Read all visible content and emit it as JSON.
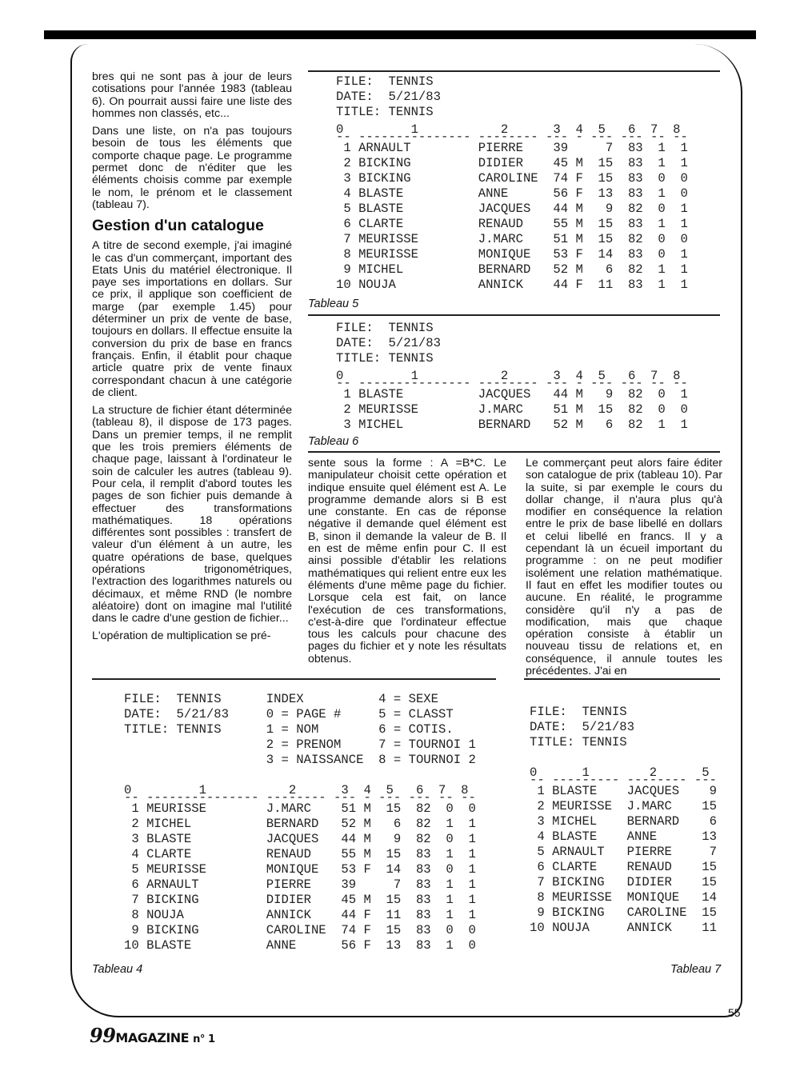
{
  "left_column": {
    "paragraphs_top": [
      "bres qui ne sont pas à jour de leurs cotisations pour l'année 1983 (tableau 6). On pourrait aussi faire une liste des hommes non classés, etc...",
      "Dans une liste, on n'a pas toujours besoin de tous les éléments que comporte chaque page. Le programme permet donc de n'éditer que les éléments choisis comme par exemple le nom, le prénom et le classement (tableau 7)."
    ],
    "heading": "Gestion d'un catalogue",
    "paragraphs_bottom": [
      "A titre de second exemple, j'ai imaginé le cas d'un commerçant, important des Etats Unis du matériel électronique. Il paye ses importations en dollars. Sur ce prix, il applique son coefficient de marge (par exemple 1.45) pour déterminer un prix de vente de base, toujours en dollars. Il effectue ensuite la conversion du prix de base en francs français. Enfin, il établit pour chaque article quatre prix de vente finaux correspondant chacun à une catégorie de client.",
      "La structure de fichier étant déterminée (tableau 8), il dispose de 173 pages. Dans un premier temps, il ne remplit que les trois premiers éléments de chaque page, laissant à l'ordinateur le soin de calculer les autres (tableau 9). Pour cela, il remplit d'abord toutes les pages de son fichier puis demande à effectuer des transformations mathématiques. 18 opérations différentes sont possibles : transfert de valeur d'un élément à un autre, les quatre opérations de base, quelques opérations trigonométriques, l'extraction des logarithmes naturels ou décimaux, et même RND (le nombre aléatoire) dont on imagine mal l'utilité dans le cadre d'une gestion de fichier...",
      "L'opération de multiplication se pré-"
    ]
  },
  "middle_column": "sente sous la forme : A =B*C. Le manipulateur choisit cette opération et indique ensuite quel élément est A. Le programme demande alors si B est une constante. En cas de réponse négative il demande quel élément est B, sinon il demande la valeur de B. Il en est de même enfin pour C. Il est ainsi possible d'établir les relations mathématiques qui relient entre eux les éléments d'une même page du fichier. Lorsque cela est fait, on lance l'exécution de ces transformations, c'est-à-dire que l'ordinateur effectue tous les calculs pour chacune des pages du fichier et y note les résultats obtenus.",
  "right_column": "Le commerçant peut alors faire éditer son catalogue de prix (tableau 10). Par la suite, si par exemple le cours du dollar change, il n'aura plus qu'à modifier en conséquence la relation entre le prix de base libellé en dollars et celui libellé en francs. Il y a cependant là un écueil important du programme : on ne peut modifier isolément une relation mathématique. Il faut en effet les modifier toutes ou aucune. En réalité, le programme considère qu'il n'y a pas de modification, mais que chaque opération consiste à établir un nouveau tissu de relations et, en conséquence, il annule toutes les précédentes. J'ai en",
  "file_header": {
    "file": "FILE:  TENNIS",
    "date": "DATE:  5/21/83",
    "title": "TITLE: TENNIS"
  },
  "tableau5": {
    "caption": "Tableau 5",
    "columns": [
      "0",
      "1",
      "2",
      "3",
      "4",
      "5",
      "6",
      "7",
      "8"
    ],
    "rows": [
      [
        "1",
        "ARNAULT",
        "PIERRE",
        "39",
        "",
        "7",
        "83",
        "1",
        "1"
      ],
      [
        "2",
        "BICKING",
        "DIDIER",
        "45",
        "M",
        "15",
        "83",
        "1",
        "1"
      ],
      [
        "3",
        "BICKING",
        "CAROLINE",
        "74",
        "F",
        "15",
        "83",
        "0",
        "0"
      ],
      [
        "4",
        "BLASTE",
        "ANNE",
        "56",
        "F",
        "13",
        "83",
        "1",
        "0"
      ],
      [
        "5",
        "BLASTE",
        "JACQUES",
        "44",
        "M",
        "9",
        "82",
        "0",
        "1"
      ],
      [
        "6",
        "CLARTE",
        "RENAUD",
        "55",
        "M",
        "15",
        "83",
        "1",
        "1"
      ],
      [
        "7",
        "MEURISSE",
        "J.MARC",
        "51",
        "M",
        "15",
        "82",
        "0",
        "0"
      ],
      [
        "8",
        "MEURISSE",
        "MONIQUE",
        "53",
        "F",
        "14",
        "83",
        "0",
        "1"
      ],
      [
        "9",
        "MICHEL",
        "BERNARD",
        "52",
        "M",
        "6",
        "82",
        "1",
        "1"
      ],
      [
        "10",
        "NOUJA",
        "ANNICK",
        "44",
        "F",
        "11",
        "83",
        "1",
        "1"
      ]
    ]
  },
  "tableau6": {
    "caption": "Tableau 6",
    "columns": [
      "0",
      "1",
      "2",
      "3",
      "4",
      "5",
      "6",
      "7",
      "8"
    ],
    "rows": [
      [
        "1",
        "BLASTE",
        "JACQUES",
        "44",
        "M",
        "9",
        "82",
        "0",
        "1"
      ],
      [
        "2",
        "MEURISSE",
        "J.MARC",
        "51",
        "M",
        "15",
        "82",
        "0",
        "0"
      ],
      [
        "3",
        "MICHEL",
        "BERNARD",
        "52",
        "M",
        "6",
        "82",
        "1",
        "1"
      ]
    ]
  },
  "tableau4": {
    "caption": "Tableau 4",
    "index": [
      [
        "INDEX",
        "4 = SEXE"
      ],
      [
        "0 = PAGE #",
        "5 = CLASST"
      ],
      [
        "1 = NOM",
        "6 = COTIS."
      ],
      [
        "2 = PRENOM",
        "7 = TOURNOI 1"
      ],
      [
        "3 = NAISSANCE",
        "8 = TOURNOI 2"
      ]
    ],
    "columns": [
      "0",
      "1",
      "2",
      "3",
      "4",
      "5",
      "6",
      "7",
      "8"
    ],
    "rows": [
      [
        "1",
        "MEURISSE",
        "J.MARC",
        "51",
        "M",
        "15",
        "82",
        "0",
        "0"
      ],
      [
        "2",
        "MICHEL",
        "BERNARD",
        "52",
        "M",
        "6",
        "82",
        "1",
        "1"
      ],
      [
        "3",
        "BLASTE",
        "JACQUES",
        "44",
        "M",
        "9",
        "82",
        "0",
        "1"
      ],
      [
        "4",
        "CLARTE",
        "RENAUD",
        "55",
        "M",
        "15",
        "83",
        "1",
        "1"
      ],
      [
        "5",
        "MEURISSE",
        "MONIQUE",
        "53",
        "F",
        "14",
        "83",
        "0",
        "1"
      ],
      [
        "6",
        "ARNAULT",
        "PIERRE",
        "39",
        "",
        "7",
        "83",
        "1",
        "1"
      ],
      [
        "7",
        "BICKING",
        "DIDIER",
        "45",
        "M",
        "15",
        "83",
        "1",
        "1"
      ],
      [
        "8",
        "NOUJA",
        "ANNICK",
        "44",
        "F",
        "11",
        "83",
        "1",
        "1"
      ],
      [
        "9",
        "BICKING",
        "CAROLINE",
        "74",
        "F",
        "15",
        "83",
        "0",
        "0"
      ],
      [
        "10",
        "BLASTE",
        "ANNE",
        "56",
        "F",
        "13",
        "83",
        "1",
        "0"
      ]
    ]
  },
  "tableau7": {
    "caption": "Tableau 7",
    "columns": [
      "0",
      "1",
      "2",
      "5"
    ],
    "rows": [
      [
        "1",
        "BLASTE",
        "JACQUES",
        "9"
      ],
      [
        "2",
        "MEURISSE",
        "J.MARC",
        "15"
      ],
      [
        "3",
        "MICHEL",
        "BERNARD",
        "6"
      ],
      [
        "4",
        "BLASTE",
        "ANNE",
        "13"
      ],
      [
        "5",
        "ARNAULT",
        "PIERRE",
        "7"
      ],
      [
        "6",
        "CLARTE",
        "RENAUD",
        "15"
      ],
      [
        "7",
        "BICKING",
        "DIDIER",
        "15"
      ],
      [
        "8",
        "MEURISSE",
        "MONIQUE",
        "14"
      ],
      [
        "9",
        "BICKING",
        "CAROLINE",
        "15"
      ],
      [
        "10",
        "NOUJA",
        "ANNICK",
        "11"
      ]
    ]
  },
  "footer": {
    "page_number": "55",
    "logo_text": "99 MAGAZINE n° 1"
  }
}
